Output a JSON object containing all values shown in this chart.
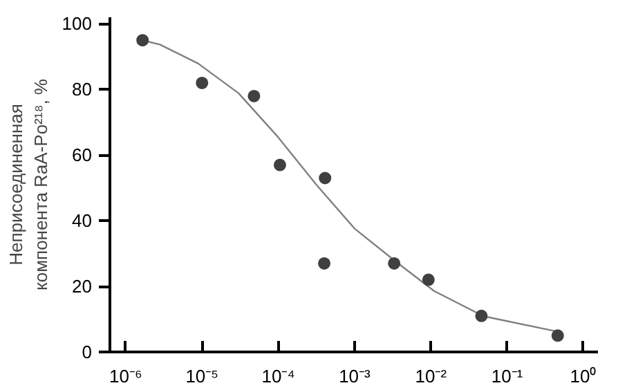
{
  "chart_data": {
    "type": "scatter",
    "ylabel": "Неприсоединенная\nкомпонента RaA-Po²¹⁸, %",
    "log": "x",
    "grid": false,
    "marker": "circle",
    "xlim": [
      6.2e-07,
      1.55
    ],
    "ylim": [
      0,
      102
    ],
    "xticks": [
      {
        "value": 1e-06,
        "label": "10⁻⁶"
      },
      {
        "value": 1e-05,
        "label": "10⁻⁵"
      },
      {
        "value": 0.0001,
        "label": "10⁻⁴"
      },
      {
        "value": 0.001,
        "label": "10⁻³"
      },
      {
        "value": 0.01,
        "label": "10⁻²"
      },
      {
        "value": 0.1,
        "label": "10⁻¹"
      },
      {
        "value": 1,
        "label": "10⁰"
      }
    ],
    "yticks": [
      0,
      20,
      40,
      60,
      80,
      100
    ],
    "series": [
      {
        "color": "#404040",
        "x": [
          1.66e-06,
          1e-05,
          4.8e-05,
          0.000105,
          0.00041,
          0.0004,
          0.0033,
          0.0093,
          0.046,
          0.46
        ],
        "values": [
          95,
          82,
          78,
          57,
          53,
          27,
          27,
          22,
          11,
          5
        ]
      },
      {
        "type": "line",
        "color": "#808080",
        "line_style": "solid",
        "marker": "none",
        "x": [
          1.66e-06,
          2.8e-06,
          8.9e-06,
          3e-05,
          9.5e-05,
          0.00032,
          0.001,
          0.0034,
          0.011,
          0.049,
          0.46
        ],
        "values": [
          95,
          93.7,
          87.9,
          78.9,
          66,
          50.8,
          37.6,
          27.7,
          18.6,
          10.9,
          6.2
        ]
      }
    ]
  }
}
